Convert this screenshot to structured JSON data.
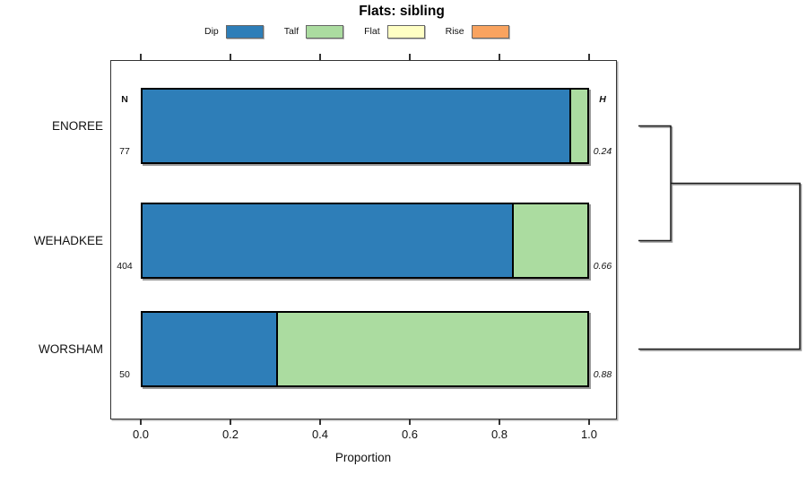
{
  "chart_data": {
    "type": "bar",
    "variant": "horizontal-stacked-proportion",
    "title": "Flats: sibling",
    "xlabel": "Proportion",
    "xlim": [
      0,
      1
    ],
    "x_ticks": [
      0.0,
      0.2,
      0.4,
      0.6,
      0.8,
      1.0
    ],
    "grid": false,
    "categories": [
      "ENOREE",
      "WEHADKEE",
      "WORSHAM"
    ],
    "series": [
      {
        "name": "Dip",
        "color": "#2E7EB8",
        "values": [
          0.96,
          0.83,
          0.3
        ]
      },
      {
        "name": "Talf",
        "color": "#ABDCA0",
        "values": [
          0.04,
          0.17,
          0.7
        ]
      },
      {
        "name": "Flat",
        "color": "#FFFFC4",
        "values": [
          0.0,
          0.0,
          0.0
        ]
      },
      {
        "name": "Rise",
        "color": "#F9A35F",
        "values": [
          0.0,
          0.0,
          0.0
        ]
      }
    ],
    "legend": {
      "position": "top",
      "entries": [
        "Dip",
        "Talf",
        "Flat",
        "Rise"
      ]
    },
    "annotations": {
      "n_header": "N",
      "h_header": "H",
      "n_values": [
        "77",
        "404",
        "50"
      ],
      "h_values": [
        "0.24",
        "0.66",
        "0.88"
      ]
    },
    "dendrogram": {
      "leaves": [
        "ENOREE",
        "WEHADKEE",
        "WORSHAM"
      ],
      "joins": [
        {
          "a": "leaf:0",
          "b": "leaf:1"
        },
        {
          "a": "join:0",
          "b": "leaf:2"
        }
      ]
    },
    "axis_color": "#333333",
    "bar_border_color": "#000000"
  }
}
